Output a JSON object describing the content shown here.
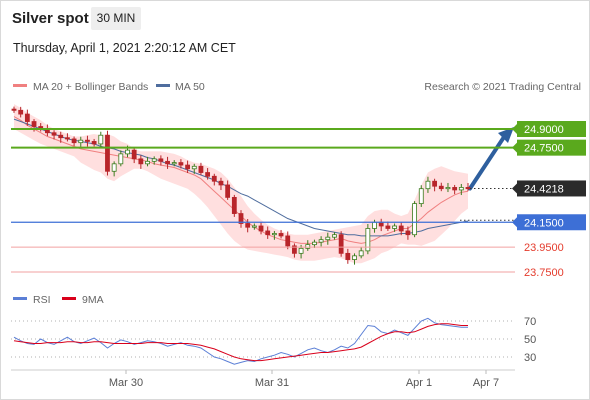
{
  "header": {
    "title": "Silver spot",
    "timeframe": "30 MIN",
    "timestamp": "Thursday, April 1, 2021 2:20:12 AM CET"
  },
  "legend": {
    "ma20_label": "MA 20 + Bollinger Bands",
    "ma50_label": "MA 50",
    "credit": "Research © 2021 Trading Central",
    "rsi_label": "RSI",
    "rsi_ma_label": "9MA"
  },
  "colors": {
    "resistance": "#5aa91d",
    "support": "#3d6fd6",
    "support_red": "#e43b2c",
    "ma20": "#f08080",
    "bollinger_fill": "#ffd9d9",
    "ma50": "#4f6d9e",
    "current_price_bg": "#2b2b2b",
    "rsi": "#5b7fd6",
    "rsi_ma": "#d9001b",
    "candle_up": "#3c7d1e",
    "candle_down": "#b8252a",
    "arrow": "#2e5f9e"
  },
  "chart_data": {
    "type": "line",
    "price_levels": [
      {
        "value": 24.9,
        "label": "24.9000",
        "kind": "resistance"
      },
      {
        "value": 24.75,
        "label": "24.7500",
        "kind": "resistance"
      },
      {
        "value": 24.4218,
        "label": "24.4218",
        "kind": "current"
      },
      {
        "value": 24.15,
        "label": "24.1500",
        "kind": "support"
      },
      {
        "value": 23.95,
        "label": "23.9500",
        "kind": "support_minor"
      },
      {
        "value": 23.75,
        "label": "23.7500",
        "kind": "support_minor"
      }
    ],
    "price_ylim": [
      23.72,
      25.15
    ],
    "x_ticks": [
      "Mar 30",
      "Mar 31",
      "Apr 1",
      "Apr 7"
    ],
    "price_series": [
      25.05,
      25.02,
      24.96,
      24.92,
      24.9,
      24.87,
      24.85,
      24.83,
      24.82,
      24.79,
      24.81,
      24.8,
      24.78,
      24.85,
      24.56,
      24.62,
      24.7,
      24.73,
      24.66,
      24.62,
      24.64,
      24.66,
      24.64,
      24.62,
      24.63,
      24.61,
      24.58,
      24.6,
      24.55,
      24.52,
      24.48,
      24.45,
      24.35,
      24.22,
      24.14,
      24.11,
      24.12,
      24.08,
      24.05,
      24.06,
      24.04,
      23.96,
      23.9,
      23.94,
      23.97,
      23.99,
      24.01,
      24.03,
      24.05,
      23.9,
      23.85,
      23.88,
      23.92,
      24.1,
      24.15,
      24.12,
      24.1,
      24.12,
      24.08,
      24.05,
      24.3,
      24.42,
      24.48,
      24.44,
      24.42,
      24.43,
      24.41,
      24.43,
      24.42
    ],
    "ma20_series": [
      25.0,
      24.97,
      24.93,
      24.9,
      24.87,
      24.84,
      24.82,
      24.8,
      24.78,
      24.76,
      24.74,
      24.73,
      24.72,
      24.71,
      24.7,
      24.69,
      24.68,
      24.67,
      24.66,
      24.65,
      24.64,
      24.62,
      24.61,
      24.6,
      24.59,
      24.57,
      24.55,
      24.53,
      24.5,
      24.45,
      24.4,
      24.35,
      24.3,
      24.25,
      24.2,
      24.15,
      24.11,
      24.08,
      24.05,
      24.03,
      24.01,
      24.0,
      23.99,
      23.98,
      23.98,
      23.98,
      23.99,
      24.0,
      24.01,
      24.02,
      24.0,
      23.99,
      23.98,
      23.99,
      24.01,
      24.04,
      24.06,
      24.08,
      24.1,
      24.1,
      24.14,
      24.18,
      24.23,
      24.27,
      24.31,
      24.34,
      24.37,
      24.39,
      24.4
    ],
    "bb_upper": [
      25.1,
      25.07,
      25.03,
      25.0,
      24.97,
      24.93,
      24.9,
      24.88,
      24.86,
      24.84,
      24.84,
      24.85,
      24.86,
      24.85,
      24.86,
      24.84,
      24.8,
      24.78,
      24.74,
      24.72,
      24.72,
      24.72,
      24.72,
      24.71,
      24.7,
      24.68,
      24.65,
      24.63,
      24.62,
      24.6,
      24.58,
      24.55,
      24.5,
      24.43,
      24.36,
      24.28,
      24.22,
      24.17,
      24.13,
      24.1,
      24.08,
      24.06,
      24.05,
      24.05,
      24.05,
      24.06,
      24.07,
      24.08,
      24.09,
      24.1,
      24.11,
      24.12,
      24.13,
      24.2,
      24.24,
      24.25,
      24.25,
      24.22,
      24.2,
      24.22,
      24.33,
      24.45,
      24.55,
      24.58,
      24.6,
      24.58,
      24.56,
      24.55,
      24.54
    ],
    "bb_lower": [
      24.9,
      24.87,
      24.84,
      24.81,
      24.78,
      24.76,
      24.74,
      24.72,
      24.7,
      24.68,
      24.63,
      24.6,
      24.57,
      24.55,
      24.5,
      24.48,
      24.52,
      24.55,
      24.58,
      24.58,
      24.56,
      24.53,
      24.5,
      24.48,
      24.46,
      24.44,
      24.42,
      24.38,
      24.33,
      24.27,
      24.2,
      24.13,
      24.06,
      24.0,
      23.96,
      23.93,
      23.92,
      23.91,
      23.9,
      23.89,
      23.88,
      23.87,
      23.85,
      23.84,
      23.84,
      23.84,
      23.85,
      23.86,
      23.87,
      23.86,
      23.84,
      23.82,
      23.82,
      23.84,
      23.86,
      23.9,
      23.92,
      23.95,
      23.98,
      23.97,
      23.97,
      23.96,
      23.98,
      24.0,
      24.05,
      24.1,
      24.16,
      24.22,
      24.26
    ],
    "ma50_series": [
      24.98,
      24.96,
      24.94,
      24.92,
      24.9,
      24.88,
      24.86,
      24.84,
      24.82,
      24.81,
      24.8,
      24.79,
      24.78,
      24.76,
      24.75,
      24.74,
      24.72,
      24.71,
      24.7,
      24.69,
      24.67,
      24.66,
      24.64,
      24.62,
      24.61,
      24.59,
      24.57,
      24.55,
      24.53,
      24.51,
      24.49,
      24.46,
      24.44,
      24.41,
      24.38,
      24.36,
      24.33,
      24.3,
      24.27,
      24.24,
      24.21,
      24.18,
      24.16,
      24.14,
      24.12,
      24.1,
      24.09,
      24.08,
      24.07,
      24.06,
      24.05,
      24.05,
      24.04,
      24.04,
      24.04,
      24.04,
      24.04,
      24.05,
      24.06,
      24.06,
      24.07,
      24.08,
      24.1,
      24.11,
      24.12,
      24.13,
      24.14,
      24.15,
      24.16
    ],
    "rsi_ylim": [
      15,
      80
    ],
    "rsi_levels": [
      70,
      50,
      30
    ],
    "rsi_series": [
      52,
      48,
      45,
      44,
      50,
      46,
      44,
      48,
      52,
      47,
      45,
      48,
      51,
      46,
      40,
      45,
      49,
      47,
      44,
      46,
      48,
      47,
      45,
      42,
      44,
      46,
      43,
      42,
      40,
      35,
      30,
      28,
      25,
      22,
      24,
      26,
      25,
      28,
      30,
      32,
      35,
      33,
      30,
      34,
      38,
      40,
      37,
      35,
      38,
      42,
      40,
      45,
      55,
      65,
      64,
      58,
      56,
      60,
      57,
      54,
      62,
      70,
      73,
      68,
      66,
      65,
      64,
      63,
      63
    ],
    "rsi_ma_series": [
      48,
      47,
      46,
      45,
      45,
      46,
      46,
      46,
      47,
      47,
      46,
      46,
      47,
      47,
      46,
      45,
      45,
      45,
      45,
      45,
      46,
      46,
      46,
      45,
      45,
      45,
      45,
      44,
      43,
      41,
      39,
      36,
      33,
      30,
      28,
      27,
      26,
      26,
      27,
      28,
      29,
      30,
      31,
      32,
      33,
      34,
      35,
      35,
      36,
      37,
      38,
      39,
      41,
      45,
      49,
      53,
      56,
      58,
      58,
      57,
      58,
      61,
      64,
      66,
      67,
      67,
      66,
      65,
      65
    ],
    "forecast_arrow": {
      "from": 24.4218,
      "to": 24.9
    }
  }
}
